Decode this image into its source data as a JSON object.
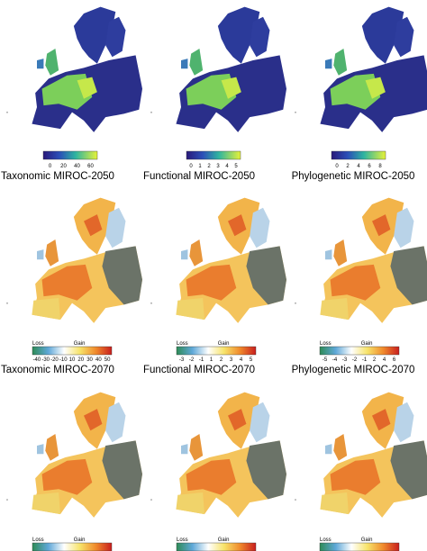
{
  "rows": [
    {
      "scales": [
        {
          "ticks": [
            0,
            20,
            40,
            60
          ]
        },
        {
          "ticks": [
            0,
            1,
            2,
            3,
            4,
            5
          ]
        },
        {
          "ticks": [
            0,
            2,
            4,
            6,
            8
          ]
        }
      ],
      "titles": [
        "Taxonomic MIROC-2050",
        "Functional MIROC-2050",
        "Phylogenetic MIROC-2050"
      ]
    },
    {
      "scales": [
        {
          "loss": "Loss",
          "gain": "Gain",
          "ticks": [
            -40,
            -30,
            -20,
            -10,
            10,
            20,
            30,
            40,
            50
          ]
        },
        {
          "loss": "Loss",
          "gain": "Gain",
          "ticks": [
            -3,
            -2,
            -1,
            1,
            2,
            3,
            4,
            5
          ]
        },
        {
          "loss": "Loss",
          "gain": "Gain",
          "ticks": [
            -5,
            -4,
            -3,
            -2,
            -1,
            2,
            4,
            6
          ]
        }
      ],
      "titles": [
        "Taxonomic MIROC-2070",
        "Functional MIROC-2070",
        "Phylogenetic MIROC-2070"
      ]
    },
    {
      "scales": [
        {
          "loss": "Loss",
          "gain": "Gain"
        },
        {
          "loss": "Loss",
          "gain": "Gain"
        },
        {
          "loss": "Loss",
          "gain": "Gain"
        }
      ]
    }
  ]
}
